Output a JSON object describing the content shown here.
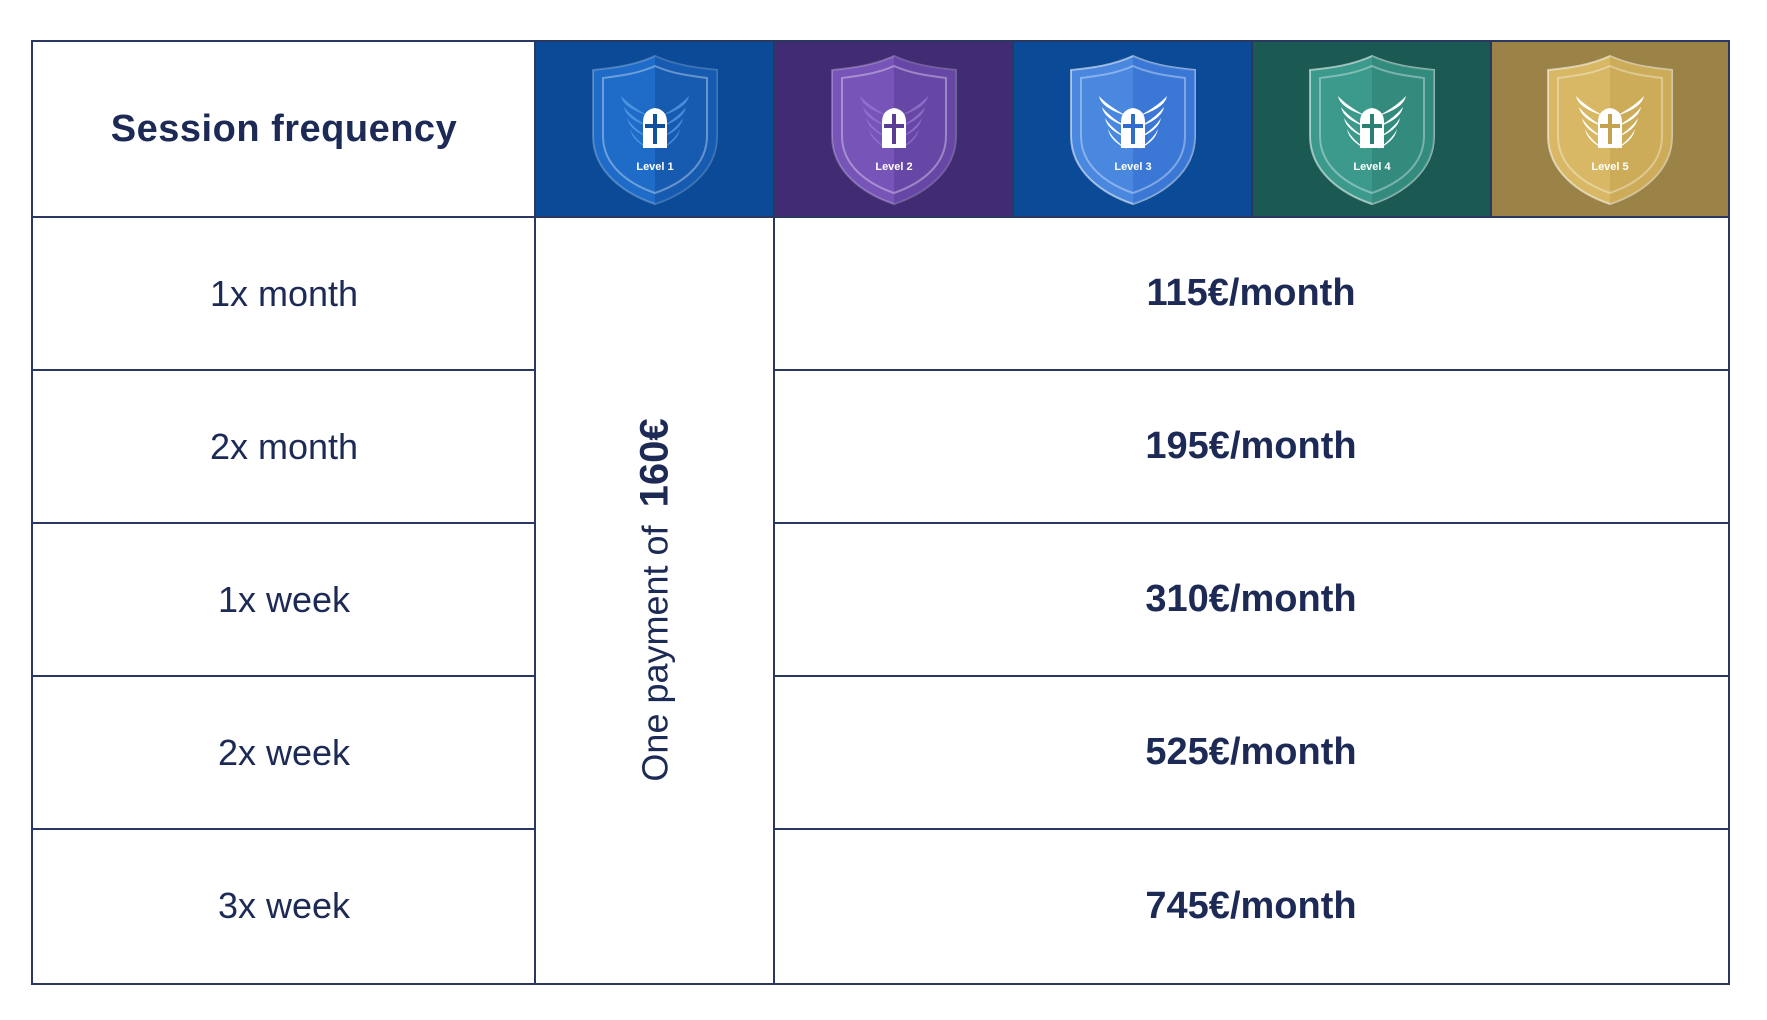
{
  "header": {
    "title": "Session frequency",
    "levels": [
      {
        "label": "Level 1",
        "bg": "#0b4a96",
        "shield": "#1e6cc7",
        "shield_dark": "#124f9e",
        "wing": "#5ea3ea",
        "active": false
      },
      {
        "label": "Level 2",
        "bg": "#412c73",
        "shield": "#7754b8",
        "shield_dark": "#5b3d98",
        "wing": "#9a7ad6",
        "active": false
      },
      {
        "label": "Level 3",
        "bg": "#0b4a96",
        "shield": "#4a88e0",
        "shield_dark": "#2f6ccc",
        "wing": "#ffffff",
        "active": true
      },
      {
        "label": "Level 4",
        "bg": "#1b5a52",
        "shield": "#3c9a8c",
        "shield_dark": "#2c7f73",
        "wing": "#ffffff",
        "active": true
      },
      {
        "label": "Level 5",
        "bg": "#9b8348",
        "shield": "#d8b864",
        "shield_dark": "#c3a250",
        "wing": "#ffffff",
        "active": true
      }
    ]
  },
  "rows": [
    {
      "frequency": "1x month",
      "price": "115€",
      "unit": "/month"
    },
    {
      "frequency": "2x month",
      "price": "195€",
      "unit": "/month"
    },
    {
      "frequency": "1x week",
      "price": "310€",
      "unit": "/month"
    },
    {
      "frequency": "2x week",
      "price": "525€",
      "unit": "/month"
    },
    {
      "frequency": "3x week",
      "price": "745€",
      "unit": "/month"
    }
  ],
  "level1_payment": {
    "prefix": "One payment of",
    "amount": "160€"
  },
  "colors": {
    "text": "#1c2a55",
    "border": "#2a3760"
  }
}
